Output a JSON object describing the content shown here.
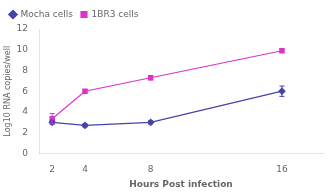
{
  "chart_data": {
    "type": "line",
    "x": [
      2,
      4,
      8,
      16
    ],
    "xlabel": "Hours Post infection",
    "ylabel": "Log10 RNA copies/well",
    "xlim": [
      1.2,
      18.5
    ],
    "xticks": [
      2,
      4,
      8,
      16
    ],
    "ylim": [
      0,
      12
    ],
    "yticks": [
      0,
      2,
      4,
      6,
      8,
      10,
      12
    ],
    "grid": false,
    "legend": "upper left",
    "series": [
      {
        "name": "Mocha cells",
        "color": "#4444aa",
        "marker": "diamond",
        "values": [
          3.0,
          2.7,
          3.0,
          6.0
        ],
        "yerr": [
          0.2,
          0.15,
          0.15,
          0.5
        ]
      },
      {
        "name": "1BR3 cells",
        "color": "#dd33cc",
        "marker": "square",
        "values": [
          3.35,
          6.0,
          7.3,
          9.9
        ],
        "yerr": [
          0.5,
          0.15,
          0.2,
          0.15
        ]
      }
    ]
  }
}
